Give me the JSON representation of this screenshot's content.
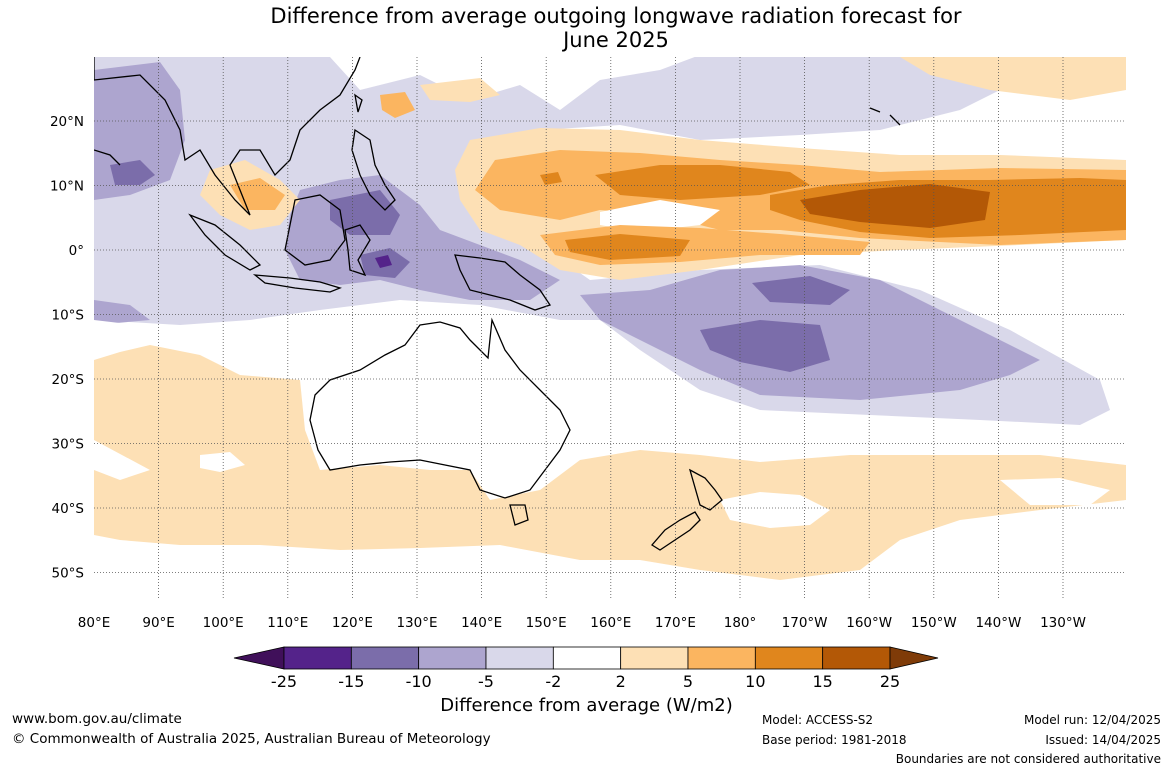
{
  "title": {
    "line1": "Difference from average outgoing longwave radiation forecast for",
    "line2": "June 2025"
  },
  "lat_labels": [
    "20°N",
    "10°N",
    "0°",
    "10°S",
    "20°S",
    "30°S",
    "40°S",
    "50°S"
  ],
  "lon_labels": [
    "80°E",
    "90°E",
    "100°E",
    "110°E",
    "120°E",
    "130°E",
    "140°E",
    "150°E",
    "160°E",
    "170°E",
    "180°",
    "170°W",
    "160°W",
    "150°W",
    "140°W",
    "130°W"
  ],
  "colorbar": {
    "labels": [
      "-25",
      "-15",
      "-10",
      "-5",
      "-2",
      "2",
      "5",
      "10",
      "15",
      "25"
    ],
    "colors": [
      "#40105a",
      "#54238a",
      "#7b6daa",
      "#ada5cf",
      "#d9d8ea",
      "#ffffff",
      "#fde0b5",
      "#fbb560",
      "#e0861d",
      "#b35806",
      "#7f3b08"
    ],
    "title": "Difference from average (W/m2)"
  },
  "footer": {
    "url": "www.bom.gov.au/climate",
    "copyright": "© Commonwealth of Australia 2025, Australian Bureau of Meteorology",
    "model": "Model: ACCESS-S2",
    "base_period": "Base period: 1981-2018",
    "model_run": "Model run: 12/04/2025",
    "issued": "Issued: 14/04/2025",
    "disclaimer": "Boundaries are not considered authoritative"
  }
}
